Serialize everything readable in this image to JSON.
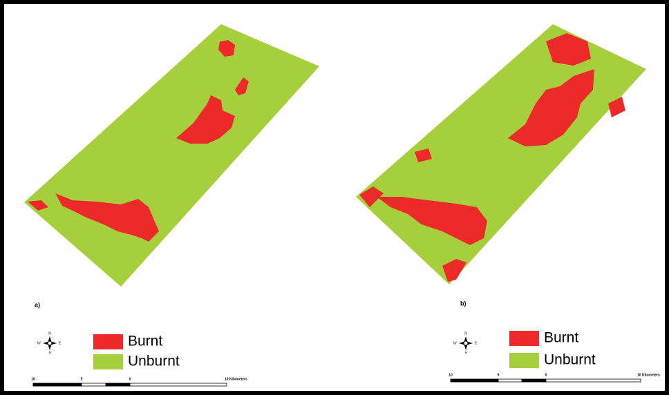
{
  "panels": [
    {
      "label": "a)",
      "legend": [
        {
          "name": "Burnt",
          "color": "#ec2a2a"
        },
        {
          "name": "Unburnt",
          "color": "#a6cf3c"
        }
      ],
      "compass": {
        "n": "N",
        "s": "S",
        "e": "E",
        "w": "W"
      },
      "scale": [
        "10",
        "5",
        "0",
        "10 Kilometers"
      ]
    },
    {
      "label": "b)",
      "legend": [
        {
          "name": "Burnt",
          "color": "#ec2a2a"
        },
        {
          "name": "Unburnt",
          "color": "#a6cf3c"
        }
      ],
      "compass": {
        "n": "N",
        "s": "S",
        "e": "E",
        "w": "W"
      },
      "scale": [
        "10",
        "5",
        "0",
        "10 Kilometers"
      ]
    }
  ]
}
